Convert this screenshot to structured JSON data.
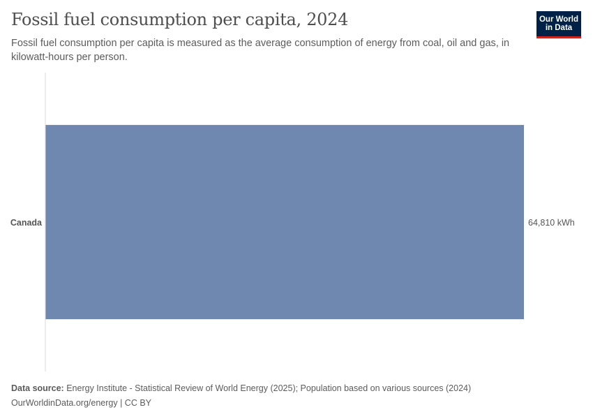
{
  "header": {
    "title": "Fossil fuel consumption per capita, 2024",
    "subtitle": "Fossil fuel consumption per capita is measured as the average consumption of energy from coal, oil and gas, in kilowatt-hours per person."
  },
  "logo": {
    "line1": "Our World",
    "line2": "in Data"
  },
  "colors": {
    "bar": "#6f88b0",
    "axis": "#d9d9d9",
    "logo_bg": "#002147",
    "logo_accent": "#ce261e"
  },
  "chart_data": {
    "type": "bar",
    "orientation": "horizontal",
    "title": "Fossil fuel consumption per capita, 2024",
    "categories": [
      "Canada"
    ],
    "values": [
      64810
    ],
    "value_labels": [
      "64,810 kWh"
    ],
    "unit": "kWh",
    "xlim": [
      0,
      64810
    ],
    "grid": false
  },
  "footer": {
    "source_label": "Data source:",
    "source_text": "Energy Institute - Statistical Review of World Energy (2025); Population based on various sources (2024)",
    "link_text": "OurWorldinData.org/energy | CC BY"
  }
}
